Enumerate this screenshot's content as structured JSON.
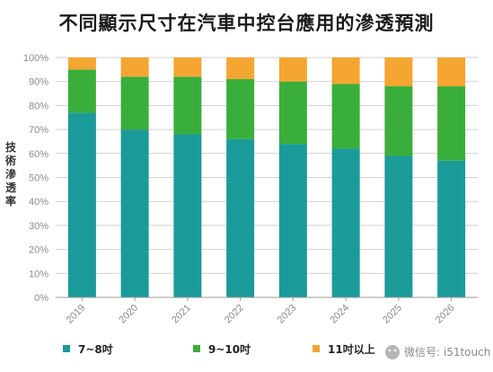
{
  "title": "不同顯示尺寸在汽車中控台應用的滲透預測",
  "watermark": "微信号: i51touch",
  "chart_data": {
    "type": "bar",
    "stacked": true,
    "percent": true,
    "title": "不同顯示尺寸在汽車中控台應用的滲透預測",
    "xlabel": "",
    "ylabel": "技術滲透率",
    "ylim": [
      0,
      100
    ],
    "yticks": [
      "0%",
      "10%",
      "20%",
      "30%",
      "40%",
      "50%",
      "60%",
      "70%",
      "80%",
      "90%",
      "100%"
    ],
    "categories": [
      "2019",
      "2020",
      "2021",
      "2022",
      "2023",
      "2024",
      "2025",
      "2026"
    ],
    "grid": true,
    "legend": "bottom",
    "series": [
      {
        "name": "7~8吋",
        "color": "#1a9b9a",
        "values": [
          77,
          70,
          68,
          66,
          64,
          62,
          59,
          57
        ]
      },
      {
        "name": "9~10吋",
        "color": "#3aae3a",
        "values": [
          18,
          22,
          24,
          25,
          26,
          27,
          29,
          31
        ]
      },
      {
        "name": "11吋以上",
        "color": "#f5a531",
        "values": [
          5,
          8,
          8,
          9,
          10,
          11,
          12,
          12
        ]
      }
    ]
  }
}
